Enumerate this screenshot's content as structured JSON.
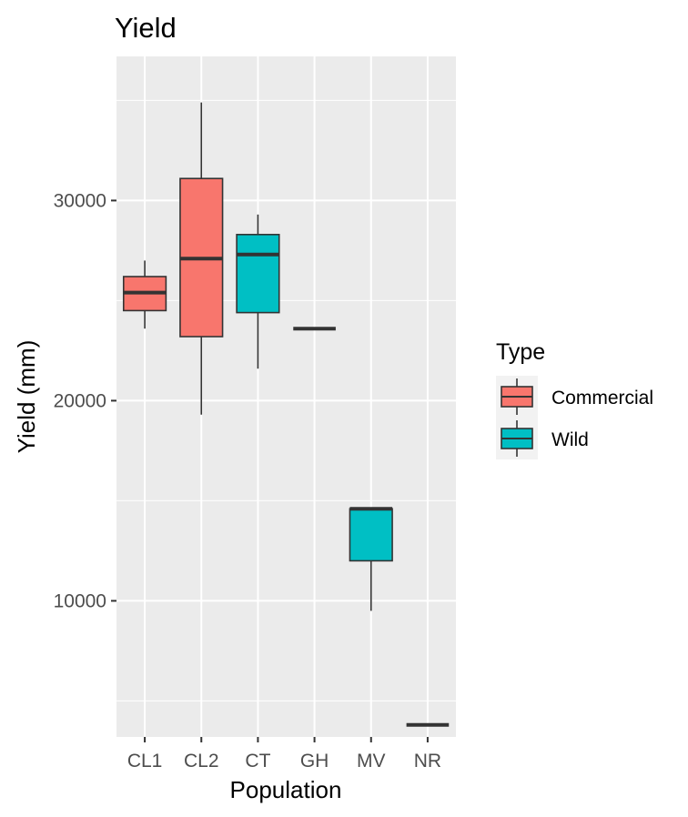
{
  "chart_data": {
    "type": "boxplot",
    "title": "Yield",
    "xlabel": "Population",
    "ylabel": "Yield (mm)",
    "categories": [
      "CL1",
      "CL2",
      "CT",
      "GH",
      "MV",
      "NR"
    ],
    "ylim": [
      3200,
      37200
    ],
    "yticks": [
      10000,
      20000,
      30000
    ],
    "ytick_labels": [
      "10000",
      "20000",
      "30000"
    ],
    "grid": true,
    "legend": {
      "title": "Type",
      "position": "right",
      "entries": [
        {
          "label": "Commercial",
          "color": "#F8766D"
        },
        {
          "label": "Wild",
          "color": "#00BFC4"
        }
      ]
    },
    "boxes": [
      {
        "category": "CL1",
        "type": "Commercial",
        "min": 23600,
        "q1": 24500,
        "median": 25400,
        "q3": 26200,
        "max": 27000
      },
      {
        "category": "CL2",
        "type": "Commercial",
        "min": 19300,
        "q1": 23200,
        "median": 27100,
        "q3": 31100,
        "max": 34900
      },
      {
        "category": "CT",
        "type": "Wild",
        "min": 21600,
        "q1": 24400,
        "median": 27300,
        "q3": 28300,
        "max": 29300
      },
      {
        "category": "GH",
        "type": "Wild",
        "min": 23600,
        "q1": 23600,
        "median": 23600,
        "q3": 23600,
        "max": 23600
      },
      {
        "category": "MV",
        "type": "Wild",
        "min": 9500,
        "q1": 12000,
        "median": 14600,
        "q3": 14600,
        "max": 14600
      },
      {
        "category": "NR",
        "type": "Wild",
        "min": 3800,
        "q1": 3800,
        "median": 3800,
        "q3": 3800,
        "max": 3800
      }
    ]
  }
}
